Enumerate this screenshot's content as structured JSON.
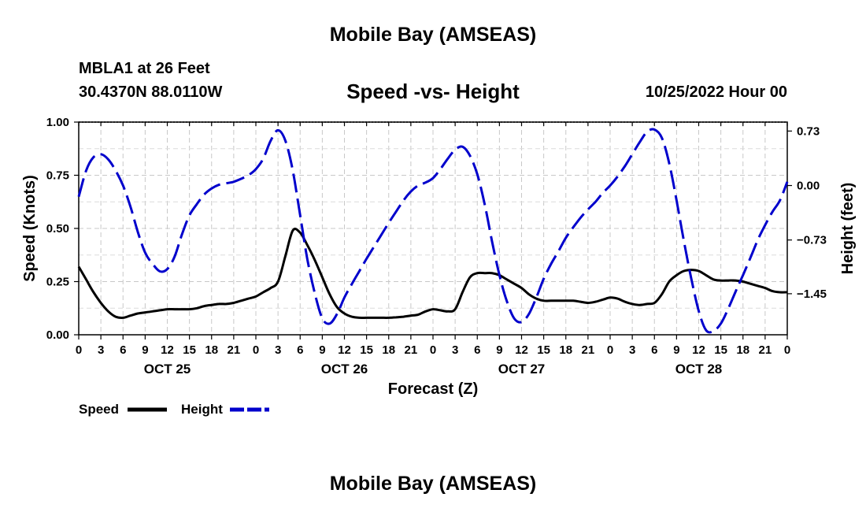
{
  "header": {
    "main_title": "Mobile Bay (AMSEAS)",
    "station_name": "MBLA1 at 26 Feet",
    "station_coords": "30.4370N  88.0110W",
    "chart_title": "Speed -vs- Height",
    "run_time": "10/25/2022 Hour 00",
    "footer_title": "Mobile Bay (AMSEAS)"
  },
  "chart_data": {
    "type": "line",
    "title": "Speed -vs- Height",
    "xlabel": "Forecast (Z)",
    "ylabel_left": "Speed (Knots)",
    "ylabel_right": "Height (feet)",
    "x_range_hours": [
      0,
      96
    ],
    "x_tick_hours": [
      0,
      3,
      6,
      9,
      12,
      15,
      18,
      21,
      24,
      27,
      30,
      33,
      36,
      39,
      42,
      45,
      48,
      51,
      54,
      57,
      60,
      63,
      66,
      69,
      72,
      75,
      78,
      81,
      84,
      87,
      90,
      93,
      96
    ],
    "x_tick_labels": [
      "0",
      "3",
      "6",
      "9",
      "12",
      "15",
      "18",
      "21",
      "0",
      "3",
      "6",
      "9",
      "12",
      "15",
      "18",
      "21",
      "0",
      "3",
      "6",
      "9",
      "12",
      "15",
      "18",
      "21",
      "0",
      "3",
      "6",
      "9",
      "12",
      "15",
      "18",
      "21",
      "0"
    ],
    "day_labels": [
      {
        "hour": 12,
        "label": "OCT 25"
      },
      {
        "hour": 36,
        "label": "OCT 26"
      },
      {
        "hour": 60,
        "label": "OCT 27"
      },
      {
        "hour": 84,
        "label": "OCT 28"
      }
    ],
    "y_left": {
      "range": [
        0,
        1.0
      ],
      "ticks": [
        0,
        0.25,
        0.5,
        0.75,
        1.0
      ],
      "tick_labels": [
        "0.00",
        "0.25",
        "0.50",
        "0.75",
        "1.00"
      ]
    },
    "y_right": {
      "range": [
        -2.0,
        0.85
      ],
      "ticks": [
        0.73,
        0.0,
        -0.73,
        -1.45
      ],
      "tick_labels": [
        "0.73",
        "0.00",
        "−0.73",
        "−1.45"
      ]
    },
    "grid": true,
    "legend_position": "bottom-left",
    "series": [
      {
        "name": "Speed",
        "axis": "left",
        "color": "#000000",
        "style": "solid",
        "x": [
          0,
          1,
          2,
          3,
          4,
          5,
          6,
          7,
          8,
          9,
          10,
          11,
          12,
          13,
          14,
          15,
          16,
          17,
          18,
          19,
          20,
          21,
          22,
          23,
          24,
          25,
          26,
          27,
          28,
          29,
          30,
          31,
          32,
          33,
          34,
          35,
          36,
          37,
          38,
          39,
          40,
          41,
          42,
          43,
          44,
          45,
          46,
          47,
          48,
          49,
          50,
          51,
          52,
          53,
          54,
          55,
          56,
          57,
          58,
          59,
          60,
          61,
          62,
          63,
          64,
          65,
          66,
          67,
          68,
          69,
          70,
          71,
          72,
          73,
          74,
          75,
          76,
          77,
          78,
          79,
          80,
          81,
          82,
          83,
          84,
          85,
          86,
          87,
          88,
          89,
          90,
          91,
          92,
          93,
          94,
          95,
          96
        ],
        "values": [
          0.32,
          0.26,
          0.2,
          0.15,
          0.11,
          0.085,
          0.08,
          0.09,
          0.1,
          0.105,
          0.11,
          0.115,
          0.12,
          0.12,
          0.12,
          0.12,
          0.125,
          0.135,
          0.14,
          0.145,
          0.145,
          0.15,
          0.16,
          0.17,
          0.18,
          0.2,
          0.22,
          0.25,
          0.37,
          0.49,
          0.48,
          0.42,
          0.35,
          0.27,
          0.19,
          0.13,
          0.1,
          0.085,
          0.08,
          0.08,
          0.08,
          0.08,
          0.08,
          0.082,
          0.085,
          0.09,
          0.095,
          0.11,
          0.12,
          0.115,
          0.11,
          0.12,
          0.2,
          0.27,
          0.29,
          0.29,
          0.29,
          0.28,
          0.26,
          0.24,
          0.22,
          0.19,
          0.17,
          0.16,
          0.16,
          0.16,
          0.16,
          0.16,
          0.155,
          0.15,
          0.155,
          0.165,
          0.175,
          0.17,
          0.155,
          0.145,
          0.14,
          0.145,
          0.15,
          0.19,
          0.25,
          0.28,
          0.3,
          0.305,
          0.3,
          0.28,
          0.26,
          0.255,
          0.255,
          0.255,
          0.25,
          0.24,
          0.23,
          0.22,
          0.205,
          0.2,
          0.2
        ]
      },
      {
        "name": "Height",
        "axis": "right",
        "color": "#0000cc",
        "style": "dashed",
        "x": [
          0,
          1,
          2,
          3,
          4,
          5,
          6,
          7,
          8,
          9,
          10,
          11,
          12,
          13,
          14,
          15,
          16,
          17,
          18,
          19,
          20,
          21,
          22,
          23,
          24,
          25,
          26,
          27,
          28,
          29,
          30,
          31,
          32,
          33,
          34,
          35,
          36,
          37,
          38,
          39,
          40,
          41,
          42,
          43,
          44,
          45,
          46,
          47,
          48,
          49,
          50,
          51,
          52,
          53,
          54,
          55,
          56,
          57,
          58,
          59,
          60,
          61,
          62,
          63,
          64,
          65,
          66,
          67,
          68,
          69,
          70,
          71,
          72,
          73,
          74,
          75,
          76,
          77,
          78,
          79,
          80,
          81,
          82,
          83,
          84,
          85,
          86,
          87,
          88,
          89,
          90,
          91,
          92,
          93,
          94,
          95,
          96
        ],
        "values": [
          -0.15,
          0.2,
          0.38,
          0.42,
          0.35,
          0.2,
          0.0,
          -0.28,
          -0.62,
          -0.9,
          -1.05,
          -1.15,
          -1.12,
          -0.95,
          -0.65,
          -0.4,
          -0.25,
          -0.12,
          -0.04,
          0.01,
          0.03,
          0.05,
          0.09,
          0.14,
          0.22,
          0.36,
          0.6,
          0.74,
          0.6,
          0.2,
          -0.4,
          -1.0,
          -1.45,
          -1.78,
          -1.85,
          -1.72,
          -1.5,
          -1.32,
          -1.15,
          -0.98,
          -0.82,
          -0.66,
          -0.5,
          -0.35,
          -0.2,
          -0.08,
          0.0,
          0.04,
          0.1,
          0.22,
          0.36,
          0.48,
          0.52,
          0.4,
          0.15,
          -0.25,
          -0.75,
          -1.2,
          -1.55,
          -1.78,
          -1.83,
          -1.72,
          -1.5,
          -1.25,
          -1.05,
          -0.88,
          -0.7,
          -0.56,
          -0.43,
          -0.32,
          -0.22,
          -0.1,
          0.0,
          0.12,
          0.26,
          0.42,
          0.58,
          0.72,
          0.75,
          0.64,
          0.3,
          -0.2,
          -0.75,
          -1.25,
          -1.68,
          -1.94,
          -1.95,
          -1.85,
          -1.65,
          -1.42,
          -1.2,
          -0.97,
          -0.73,
          -0.53,
          -0.35,
          -0.2,
          0.05
        ]
      }
    ]
  }
}
